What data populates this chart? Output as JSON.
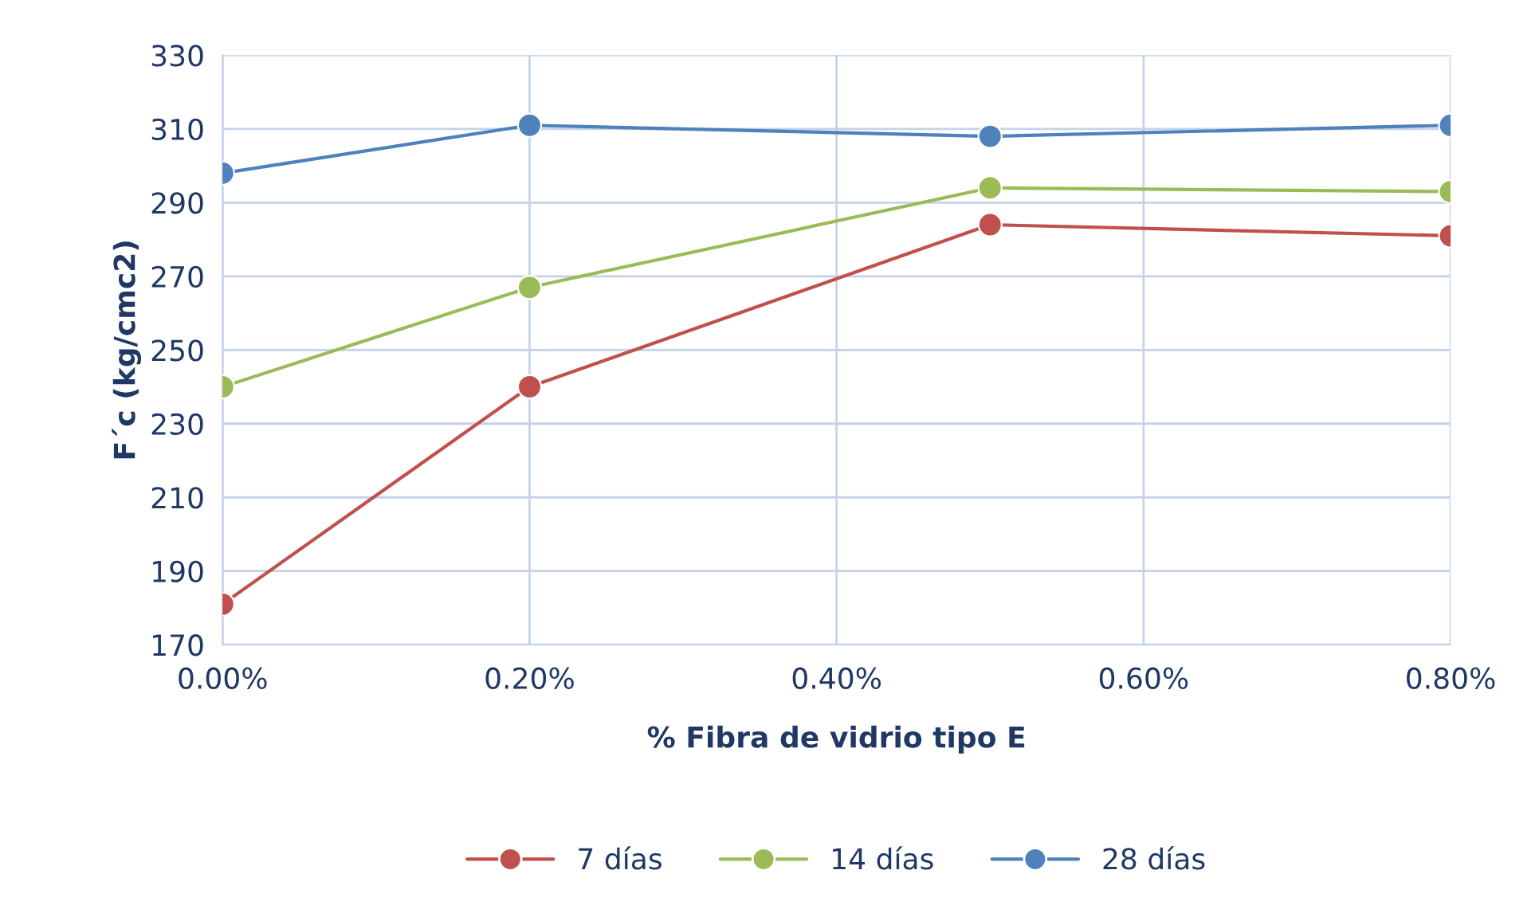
{
  "chart_data": {
    "type": "line",
    "xlabel": "% Fibra de vidrio tipo E",
    "ylabel": "F´c (kg/cmc2)",
    "x": [
      0,
      0.2,
      0.5,
      0.8
    ],
    "series": [
      {
        "name": "7 días",
        "color": "#c0504d",
        "values": [
          181,
          240,
          284,
          281
        ]
      },
      {
        "name": "14 días",
        "color": "#9bbb59",
        "values": [
          240,
          267,
          294,
          293
        ]
      },
      {
        "name": "28 días",
        "color": "#4f81bd",
        "values": [
          298,
          311,
          308,
          311
        ]
      }
    ],
    "xlim": [
      0,
      0.8
    ],
    "xticks": [
      {
        "value": 0,
        "label": "0.00%"
      },
      {
        "value": 0.2,
        "label": "0.20%"
      },
      {
        "value": 0.4,
        "label": "0.40%"
      },
      {
        "value": 0.6,
        "label": "0.60%"
      },
      {
        "value": 0.8,
        "label": "0.80%"
      }
    ],
    "ylim": [
      170,
      330
    ],
    "yticks": [
      170,
      190,
      210,
      230,
      250,
      270,
      290,
      310,
      330
    ],
    "grid": true,
    "legend": "bottom",
    "marker": "circle",
    "line_style": "solid"
  }
}
